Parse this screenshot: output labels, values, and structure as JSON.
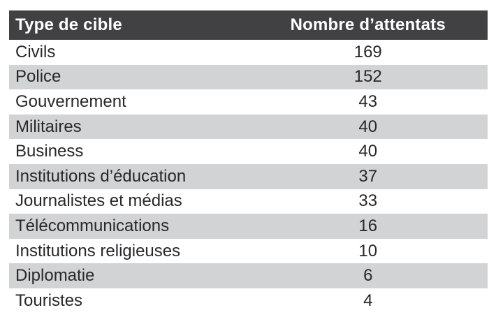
{
  "table": {
    "columns": [
      "Type de cible",
      "Nombre d’attentats"
    ],
    "rows": [
      {
        "label": "Civils",
        "value": "169"
      },
      {
        "label": "Police",
        "value": "152"
      },
      {
        "label": "Gouvernement",
        "value": "43"
      },
      {
        "label": "Militaires",
        "value": "40"
      },
      {
        "label": "Business",
        "value": "40"
      },
      {
        "label": "Institutions d’éducation",
        "value": "37"
      },
      {
        "label": "Journalistes et médias",
        "value": "33"
      },
      {
        "label": "Télécommunications",
        "value": "16"
      },
      {
        "label": "Institutions religieuses",
        "value": "10"
      },
      {
        "label": "Diplomatie",
        "value": "6"
      },
      {
        "label": "Touristes",
        "value": "4"
      }
    ]
  },
  "colors": {
    "header_bg": "#414042",
    "header_text": "#ffffff",
    "stripe_bg": "#d2d3d5",
    "row_bg": "#ffffff",
    "body_text": "#29272a"
  },
  "chart_data": {
    "type": "table",
    "title": "",
    "columns": [
      "Type de cible",
      "Nombre d’attentats"
    ],
    "categories": [
      "Civils",
      "Police",
      "Gouvernement",
      "Militaires",
      "Business",
      "Institutions d’éducation",
      "Journalistes et médias",
      "Télécommunications",
      "Institutions religieuses",
      "Diplomatie",
      "Touristes"
    ],
    "values": [
      169,
      152,
      43,
      40,
      40,
      37,
      33,
      16,
      10,
      6,
      4
    ],
    "layout": "two-column table, dark header, alternating gray/white row stripes, counts center-aligned"
  }
}
